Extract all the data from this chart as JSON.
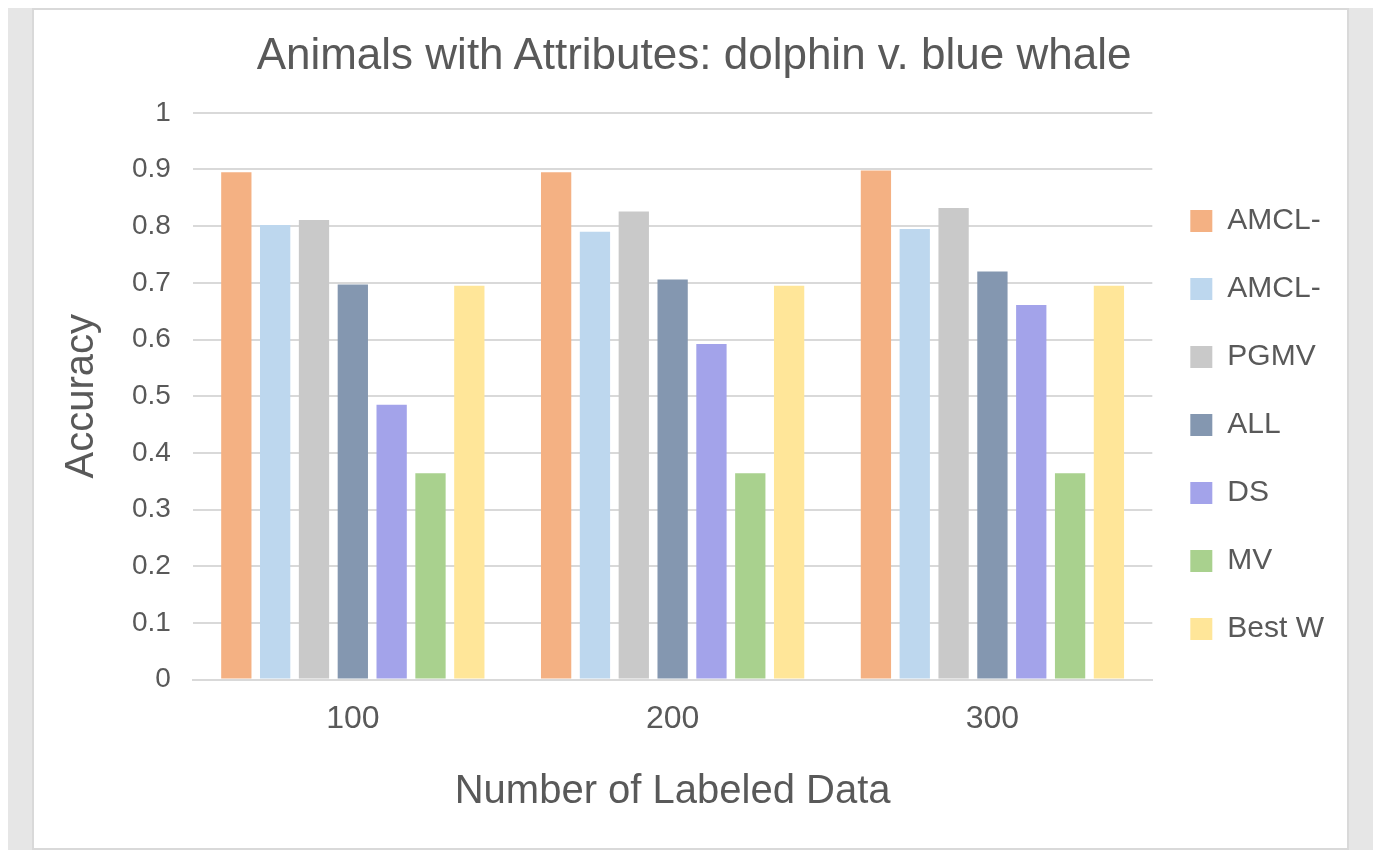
{
  "chart_data": {
    "type": "bar",
    "title": "Animals with Attributes: dolphin v. blue whale",
    "xlabel": "Number of Labeled Data",
    "ylabel": "Accuracy",
    "categories": [
      "100",
      "200",
      "300"
    ],
    "series": [
      {
        "name": "AMCL-",
        "color": "#f4b183",
        "values": [
          0.895,
          0.895,
          0.898
        ]
      },
      {
        "name": "AMCL-",
        "color": "#bdd7ee",
        "values": [
          0.802,
          0.79,
          0.795
        ]
      },
      {
        "name": "PGMV",
        "color": "#c9c9c9",
        "values": [
          0.811,
          0.826,
          0.832
        ]
      },
      {
        "name": "ALL",
        "color": "#8497b0",
        "values": [
          0.697,
          0.706,
          0.72
        ]
      },
      {
        "name": "DS",
        "color": "#a3a3ea",
        "values": [
          0.485,
          0.592,
          0.661
        ]
      },
      {
        "name": "MV",
        "color": "#a9d18e",
        "values": [
          0.364,
          0.364,
          0.364
        ]
      },
      {
        "name": "Best W",
        "color": "#ffe699",
        "values": [
          0.695,
          0.695,
          0.695
        ]
      }
    ],
    "ylim": [
      0,
      1
    ],
    "yticks": [
      0,
      0.1,
      0.2,
      0.3,
      0.4,
      0.5,
      0.6,
      0.7,
      0.8,
      0.9,
      1
    ],
    "grid": "y",
    "legend": "right"
  }
}
